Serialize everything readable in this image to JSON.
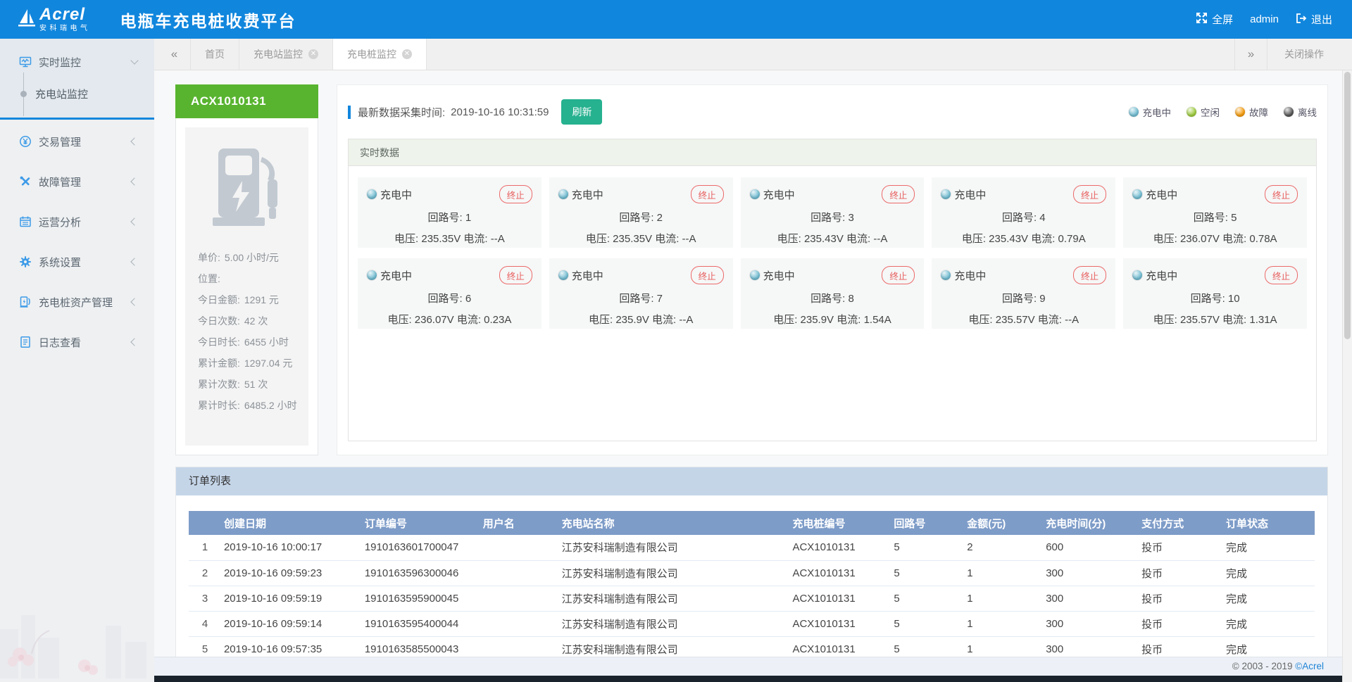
{
  "header": {
    "logo_main": "Acrel",
    "logo_sub": "安科瑞电气",
    "title": "电瓶车充电桩收费平台",
    "fullscreen_label": "全屏",
    "username": "admin",
    "logout_label": "退出"
  },
  "tabbar": {
    "tabs": [
      {
        "label": "首页",
        "closable": false,
        "active": false
      },
      {
        "label": "充电站监控",
        "closable": true,
        "active": false
      },
      {
        "label": "充电桩监控",
        "closable": true,
        "active": true
      }
    ],
    "close_ops_label": "关闭操作"
  },
  "sidebar": {
    "groups": [
      {
        "label": "实时监控",
        "icon": "monitor-icon",
        "expanded": true,
        "children": [
          {
            "label": "充电站监控",
            "active": true
          }
        ]
      },
      {
        "label": "交易管理",
        "icon": "transaction-icon"
      },
      {
        "label": "故障管理",
        "icon": "fault-icon"
      },
      {
        "label": "运营分析",
        "icon": "analysis-icon"
      },
      {
        "label": "系统设置",
        "icon": "settings-icon"
      },
      {
        "label": "充电桩资产管理",
        "icon": "asset-icon"
      },
      {
        "label": "日志查看",
        "icon": "log-icon"
      }
    ]
  },
  "pile": {
    "id": "ACX1010131",
    "stats": [
      {
        "label": "单价:",
        "value": "5.00 小时/元"
      },
      {
        "label": "位置:",
        "value": ""
      },
      {
        "label": "今日金额:",
        "value": "1291 元"
      },
      {
        "label": "今日次数:",
        "value": "42 次"
      },
      {
        "label": "今日时长:",
        "value": "6455 小时"
      },
      {
        "label": "累计金额:",
        "value": "1297.04 元"
      },
      {
        "label": "累计次数:",
        "value": "51 次"
      },
      {
        "label": "累计时长:",
        "value": "6485.2 小时"
      }
    ]
  },
  "monitor": {
    "collect_time_label": "最新数据采集时间:",
    "collect_time": "2019-10-16 10:31:59",
    "refresh_label": "刷新",
    "legend": [
      {
        "label": "充电中",
        "color": "#72BDD2"
      },
      {
        "label": "空闲",
        "color": "#9CCB3C"
      },
      {
        "label": "故障",
        "color": "#F59B0B"
      },
      {
        "label": "离线",
        "color": "#555555"
      }
    ],
    "section_title": "实时数据",
    "status_charging": "充电中",
    "terminate_label": "终止",
    "circuit_label": "回路号:",
    "voltage_label": "电压:",
    "current_label": "电流:",
    "cards": [
      {
        "circuit": "1",
        "voltage": "235.35V",
        "current": "--A"
      },
      {
        "circuit": "2",
        "voltage": "235.35V",
        "current": "--A"
      },
      {
        "circuit": "3",
        "voltage": "235.43V",
        "current": "--A"
      },
      {
        "circuit": "4",
        "voltage": "235.43V",
        "current": "0.79A"
      },
      {
        "circuit": "5",
        "voltage": "236.07V",
        "current": "0.78A"
      },
      {
        "circuit": "6",
        "voltage": "236.07V",
        "current": "0.23A"
      },
      {
        "circuit": "7",
        "voltage": "235.9V",
        "current": "--A"
      },
      {
        "circuit": "8",
        "voltage": "235.9V",
        "current": "1.54A"
      },
      {
        "circuit": "9",
        "voltage": "235.57V",
        "current": "--A"
      },
      {
        "circuit": "10",
        "voltage": "235.57V",
        "current": "1.31A"
      }
    ]
  },
  "orders": {
    "section_title": "订单列表",
    "columns": [
      "创建日期",
      "订单编号",
      "用户名",
      "充电站名称",
      "充电桩编号",
      "回路号",
      "金额(元)",
      "充电时间(分)",
      "支付方式",
      "订单状态"
    ],
    "rows": [
      [
        "1",
        "2019-10-16 10:00:17",
        "1910163601700047",
        "",
        "江苏安科瑞制造有限公司",
        "ACX1010131",
        "5",
        "2",
        "600",
        "投币",
        "完成"
      ],
      [
        "2",
        "2019-10-16 09:59:23",
        "1910163596300046",
        "",
        "江苏安科瑞制造有限公司",
        "ACX1010131",
        "5",
        "1",
        "300",
        "投币",
        "完成"
      ],
      [
        "3",
        "2019-10-16 09:59:19",
        "1910163595900045",
        "",
        "江苏安科瑞制造有限公司",
        "ACX1010131",
        "5",
        "1",
        "300",
        "投币",
        "完成"
      ],
      [
        "4",
        "2019-10-16 09:59:14",
        "1910163595400044",
        "",
        "江苏安科瑞制造有限公司",
        "ACX1010131",
        "5",
        "1",
        "300",
        "投币",
        "完成"
      ],
      [
        "5",
        "2019-10-16 09:57:35",
        "1910163585500043",
        "",
        "江苏安科瑞制造有限公司",
        "ACX1010131",
        "5",
        "1",
        "300",
        "投币",
        "完成"
      ]
    ]
  },
  "footer": {
    "copyright": "© 2003 - 2019 ",
    "brand": "©Acrel"
  }
}
